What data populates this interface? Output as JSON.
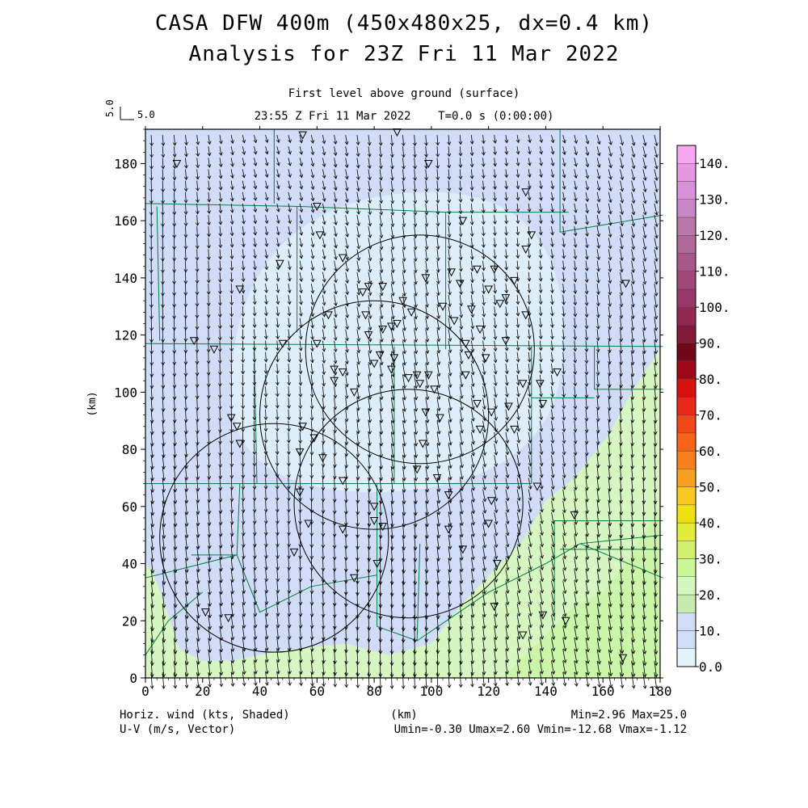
{
  "header": {
    "title_line1": "CASA DFW 400m (450x480x25, dx=0.4 km)",
    "title_line2": "Analysis for 23Z Fri 11 Mar 2022",
    "subtitle": "First level above ground (surface)",
    "time_line": "23:55 Z Fri 11 Mar 2022    T=0.0 s (0:00:00)"
  },
  "reference_vector": {
    "label_vertical": "5.0",
    "label_horizontal": "5.0"
  },
  "footer": {
    "left_line1": "Horiz. wind (kts, Shaded)",
    "left_line2": "U-V (m/s, Vector)",
    "center": "(km)",
    "right_line1": "Min=2.96 Max=25.0",
    "right_line2": "Umin=-0.30 Umax=2.60 Vmin=-12.68 Vmax=-1.12"
  },
  "colors": {
    "speed_0_10": "#e2f4fb",
    "speed_10_20": "#d0dcf8",
    "speed_20_30": "#d6f7c2",
    "county_lines": "#008040",
    "vectors": "#000000"
  },
  "chart_data": {
    "type": "heatmap",
    "xlabel": "(km)",
    "ylabel": "(km)",
    "xlim": [
      0,
      180
    ],
    "ylim": [
      0,
      192
    ],
    "x_ticks": [
      0,
      20,
      40,
      60,
      80,
      100,
      120,
      140,
      160,
      180
    ],
    "y_ticks": [
      0,
      20,
      40,
      60,
      80,
      100,
      120,
      140,
      160,
      180
    ],
    "colorbar": {
      "levels": [
        0.0,
        5.0,
        10.0,
        15.0,
        20.0,
        25.0,
        30.0,
        35.0,
        40.0,
        45.0,
        50.0,
        55.0,
        60.0,
        65.0,
        70.0,
        75.0,
        80.0,
        85.0,
        90.0,
        95.0,
        100.0,
        105.0,
        110.0,
        115.0,
        120.0,
        125.0,
        130.0,
        135.0,
        140.0
      ],
      "labels": [
        "0.0",
        "10.",
        "20.",
        "30.",
        "40.",
        "50.",
        "60.",
        "70.",
        "80.",
        "90.",
        "100.",
        "110.",
        "120.",
        "130.",
        "140."
      ],
      "colors": [
        "#e2f4fb",
        "#d0dcf8",
        "#d0dcf8",
        "#c8ecb0",
        "#d6f7c2",
        "#c8f898",
        "#d2f070",
        "#e4ec3a",
        "#f0e010",
        "#f8c820",
        "#f8a020",
        "#f88020",
        "#f86418",
        "#f04818",
        "#e82818",
        "#d81010",
        "#a00818",
        "#700818",
        "#801838",
        "#902850",
        "#983868",
        "#a04878",
        "#a85888",
        "#b06898",
        "#b878a8",
        "#c888c8",
        "#d890d8",
        "#e898e0",
        "#f8a8f0"
      ]
    },
    "wind_field": {
      "units": "m/s",
      "u_range": [
        -0.3,
        2.6
      ],
      "v_range": [
        -12.68,
        -1.12
      ],
      "speed_units": "kts",
      "speed_range": [
        2.96,
        25.0
      ]
    },
    "radar_range_rings": [
      {
        "center": [
          96,
          115
        ],
        "radius_km": 40
      },
      {
        "center": [
          80,
          92
        ],
        "radius_km": 40
      },
      {
        "center": [
          45,
          49
        ],
        "radius_km": 40
      },
      {
        "center": [
          92,
          61
        ],
        "radius_km": 40
      }
    ]
  }
}
